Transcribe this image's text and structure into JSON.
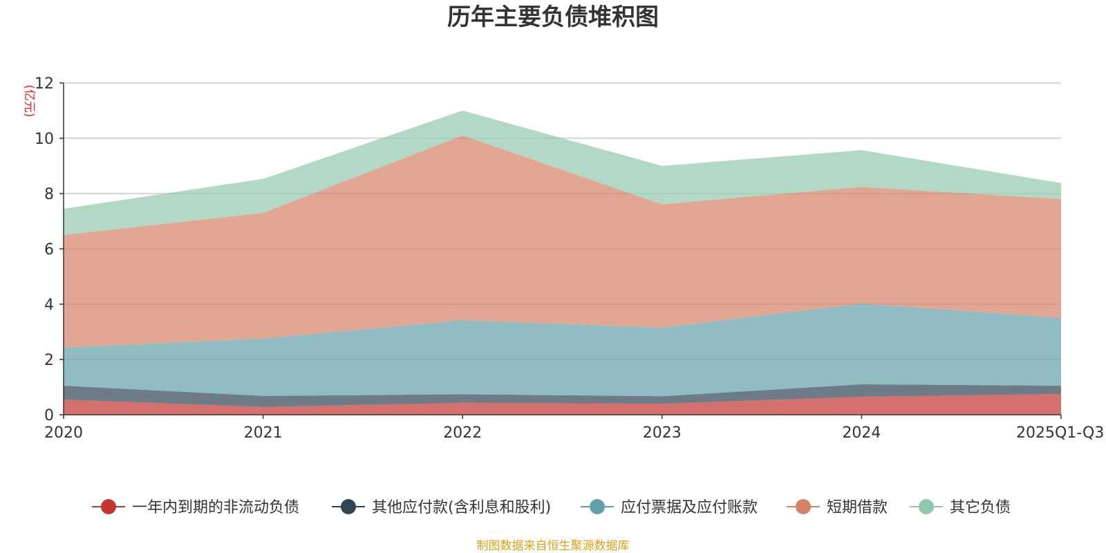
{
  "chart_data": {
    "type": "area",
    "stacked": true,
    "title": "历年主要负债堆积图",
    "ylabel": "(亿元)",
    "xlabel": "",
    "ylim": [
      0,
      12
    ],
    "yticks": [
      0,
      2,
      4,
      6,
      8,
      10,
      12
    ],
    "categories": [
      "2020",
      "2021",
      "2022",
      "2023",
      "2024",
      "2025Q1-Q3"
    ],
    "grid": true,
    "legend_position": "bottom",
    "series": [
      {
        "name": "一年内到期的非流动负债",
        "color": "#c23531",
        "values": [
          0.55,
          0.28,
          0.43,
          0.4,
          0.65,
          0.75
        ]
      },
      {
        "name": "其他应付款(含利息和股利)",
        "color": "#2f4554",
        "values": [
          0.5,
          0.4,
          0.31,
          0.27,
          0.45,
          0.3
        ]
      },
      {
        "name": "应付票据及应付账款",
        "color": "#61a0a8",
        "values": [
          1.38,
          2.08,
          2.68,
          2.48,
          2.92,
          2.45
        ]
      },
      {
        "name": "短期借款",
        "color": "#d48265",
        "values": [
          4.07,
          4.54,
          6.68,
          4.46,
          4.22,
          4.3
        ]
      },
      {
        "name": "其它负债",
        "color": "#91c7ae",
        "values": [
          0.95,
          1.23,
          0.9,
          1.39,
          1.33,
          0.58
        ]
      }
    ],
    "source": "制图数据来自恒生聚源数据库"
  }
}
